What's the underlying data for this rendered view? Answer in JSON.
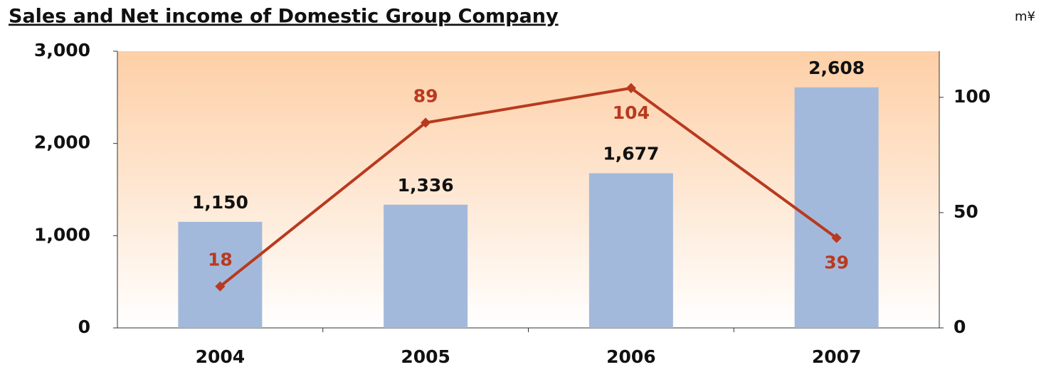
{
  "chart_data": {
    "type": "bar_line",
    "title": "Sales and Net income of  Domestic Group Company",
    "unit": "m¥",
    "categories": [
      "2004",
      "2005",
      "2006",
      "2007"
    ],
    "series": [
      {
        "type": "bar",
        "color": "#a3b9db",
        "values": [
          1150,
          1336,
          1677,
          2608
        ],
        "value_labels": [
          "1,150",
          "1,336",
          "1,677",
          "2,608"
        ]
      },
      {
        "type": "line",
        "axis": "y2",
        "color": "#b83a1f",
        "values": [
          18,
          89,
          104,
          39
        ]
      }
    ],
    "ylim": [
      0,
      3000
    ],
    "yticks": [
      0,
      {
        "value": 1000,
        "label": "1,000"
      },
      {
        "value": 2000,
        "label": "2,000"
      },
      {
        "value": 3000,
        "label": "3,000"
      }
    ],
    "y2lim": [
      0,
      120
    ],
    "y2ticks": [
      0,
      50,
      100
    ]
  }
}
